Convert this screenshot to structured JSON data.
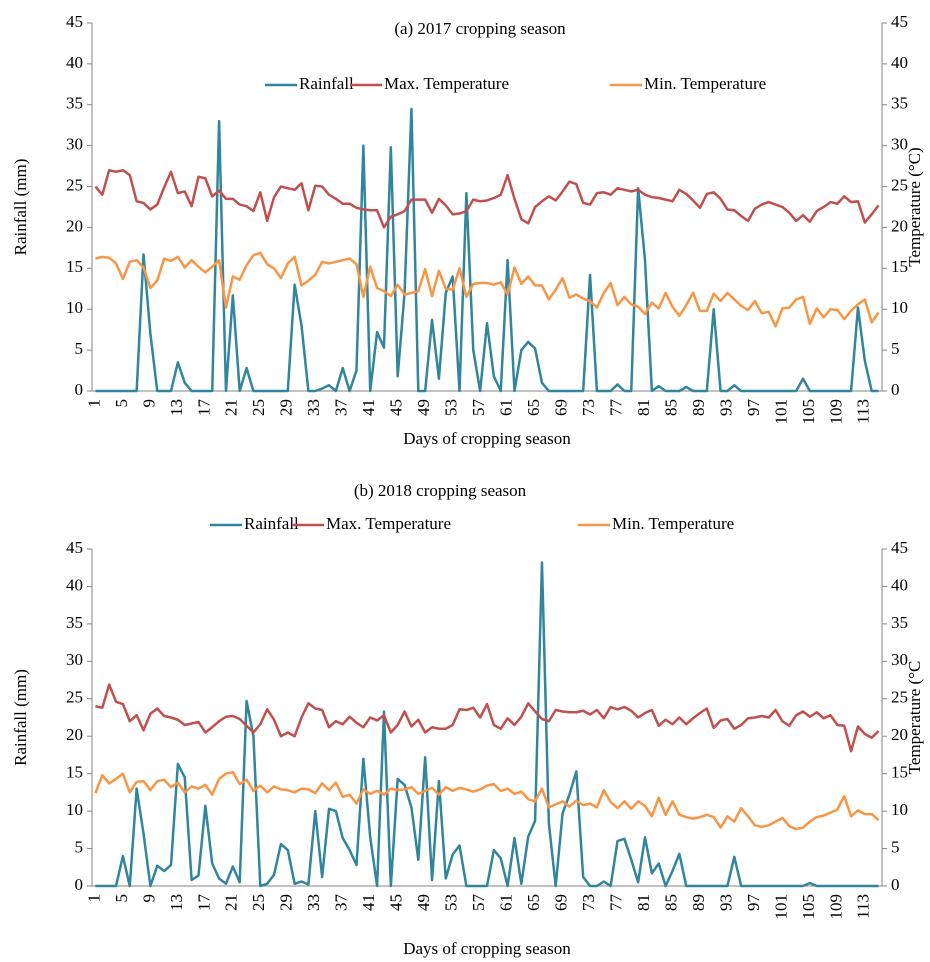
{
  "chart_data": [
    {
      "type": "line",
      "title": "(a) 2017 cropping season",
      "xlabel": "Days of cropping season",
      "ylabel": "Rainfall (mm)",
      "y2label": "Temperature (°C)",
      "legend": "top",
      "categories": [
        1,
        null,
        null,
        null,
        5,
        null,
        null,
        null,
        9,
        null,
        null,
        null,
        13,
        null,
        null,
        null,
        17,
        null,
        null,
        null,
        21,
        null,
        null,
        null,
        25,
        null,
        null,
        null,
        29,
        null,
        null,
        null,
        33,
        null,
        null,
        null,
        37,
        null,
        null,
        null,
        41,
        null,
        null,
        null,
        45,
        null,
        null,
        null,
        49,
        null,
        null,
        null,
        53,
        null,
        null,
        null,
        57,
        null,
        null,
        null,
        61,
        null,
        null,
        null,
        65,
        null,
        null,
        null,
        69,
        null,
        null,
        null,
        73,
        null,
        null,
        null,
        77,
        null,
        null,
        null,
        81,
        null,
        null,
        null,
        85,
        null,
        null,
        null,
        89,
        null,
        null,
        null,
        93,
        null,
        null,
        null,
        97,
        null,
        null,
        null,
        101,
        null,
        null,
        null,
        105,
        null,
        null,
        null,
        109,
        null,
        null,
        null,
        113,
        null,
        null
      ],
      "ylim": [
        0,
        45
      ],
      "yticks": [
        0,
        5,
        10,
        15,
        20,
        25,
        30,
        35,
        40,
        45
      ],
      "y2lim": [
        0,
        45
      ],
      "y2ticks": [
        0,
        5,
        10,
        15,
        20,
        25,
        30,
        35,
        40,
        45
      ],
      "series": [
        {
          "name": "Rainfall",
          "color": "#31859c",
          "values": [
            0,
            0,
            0,
            0,
            0,
            0,
            0,
            16.7,
            7,
            0,
            0,
            0,
            3.5,
            1,
            0,
            0,
            0,
            0,
            33,
            0,
            11.7,
            0,
            2.8,
            0,
            0,
            0,
            0,
            0,
            0,
            13,
            8,
            0,
            0,
            0.3,
            0.7,
            0,
            2.8,
            0,
            2.5,
            30,
            0,
            7.2,
            5.3,
            29.8,
            1.8,
            12,
            34.5,
            0,
            0,
            8.7,
            1.5,
            12,
            14,
            0,
            24.2,
            5,
            0,
            8.3,
            1.8,
            0,
            16,
            0,
            5,
            6,
            5.2,
            1,
            0,
            0,
            0,
            0,
            0,
            0,
            14.2,
            0,
            0,
            0,
            0.8,
            0,
            0,
            24.8,
            16,
            0,
            0.6,
            0,
            0,
            0,
            0.5,
            0,
            0,
            0,
            10,
            0,
            0,
            0.7,
            0,
            0,
            0,
            0,
            0,
            0,
            0,
            0,
            0,
            1.5,
            0,
            0,
            0,
            0,
            0,
            0,
            0,
            10.2,
            3.7,
            0,
            0
          ]
        },
        {
          "name": "Max. Temperature",
          "color": "#c0504d",
          "axis": "y2",
          "values": [
            25,
            24,
            27,
            26.8,
            27,
            26.4,
            23.2,
            23,
            22.2,
            22.8,
            24.9,
            26.8,
            24.2,
            24.4,
            22.6,
            26.2,
            26,
            23.8,
            24.5,
            23.5,
            23.5,
            22.8,
            22.6,
            22,
            24.3,
            20.8,
            23.7,
            25,
            24.8,
            24.6,
            25.4,
            22.1,
            25.1,
            25,
            24,
            23.5,
            22.9,
            22.9,
            22.4,
            22.2,
            22.1,
            22.1,
            20,
            21.3,
            21.6,
            22,
            23.4,
            23.4,
            23.4,
            21.8,
            23.5,
            22.7,
            21.6,
            21.7,
            22,
            23.4,
            23.2,
            23.3,
            23.6,
            24,
            26.4,
            23.5,
            21,
            20.5,
            22.5,
            23.2,
            23.8,
            23.3,
            24.4,
            25.6,
            25.3,
            23,
            22.8,
            24.2,
            24.3,
            24,
            24.8,
            24.6,
            24.4,
            24.6,
            24,
            23.7,
            23.6,
            23.4,
            23.2,
            24.6,
            24.1,
            23.3,
            22.4,
            24.1,
            24.3,
            23.5,
            22.2,
            22.1,
            21.4,
            20.8,
            22.3,
            22.8,
            23.1,
            22.8,
            22.5,
            21.8,
            20.8,
            21.5,
            20.7,
            22,
            22.5,
            23.1,
            22.9,
            23.8,
            23.1,
            23.2,
            20.6,
            21.6,
            22.7
          ]
        },
        {
          "name": "Min. Temperature",
          "color": "#f79646",
          "axis": "y2",
          "values": [
            16.2,
            16.4,
            16.3,
            15.6,
            13.7,
            15.8,
            16,
            15.1,
            12.6,
            13.5,
            16.2,
            15.9,
            16.4,
            15.1,
            16,
            15.2,
            14.5,
            15.2,
            16,
            10.2,
            14,
            13.6,
            15.4,
            16.6,
            16.9,
            15.5,
            15,
            13.8,
            15.6,
            16.4,
            12.9,
            13.5,
            14.2,
            15.8,
            15.6,
            15.8,
            16,
            16.2,
            15.5,
            11.5,
            15.2,
            12.6,
            12.2,
            11.6,
            13,
            11.8,
            12,
            12.2,
            14.9,
            11.6,
            14.7,
            12.5,
            12.4,
            15,
            11.5,
            13.1,
            13.2,
            13.2,
            13,
            13.3,
            11.8,
            15.1,
            13.1,
            14,
            12.9,
            12.9,
            11.2,
            12.4,
            13.8,
            11.4,
            11.8,
            11.3,
            11,
            10.2,
            12,
            13.2,
            10.5,
            11.5,
            10.6,
            10.3,
            9.4,
            10.8,
            10.1,
            12,
            10.3,
            9.2,
            10.5,
            12,
            9.8,
            9.8,
            11.9,
            11,
            12,
            11.2,
            10.4,
            9.9,
            11,
            9.5,
            9.7,
            7.9,
            10.1,
            10.2,
            11.2,
            11.5,
            8.2,
            10.1,
            9,
            10,
            9.9,
            8.8,
            9.8,
            10.6,
            11.2,
            8.4,
            9.6
          ]
        }
      ]
    },
    {
      "type": "line",
      "title": "(b) 2018 cropping season",
      "xlabel": "Days of cropping season",
      "ylabel": "Rainfall (mm)",
      "y2label": "Temperature (°C",
      "legend": "top",
      "categories": [
        1,
        null,
        null,
        null,
        5,
        null,
        null,
        null,
        9,
        null,
        null,
        null,
        13,
        null,
        null,
        null,
        17,
        null,
        null,
        null,
        21,
        null,
        null,
        null,
        25,
        null,
        null,
        null,
        29,
        null,
        null,
        null,
        33,
        null,
        null,
        null,
        37,
        null,
        null,
        null,
        41,
        null,
        null,
        null,
        45,
        null,
        null,
        null,
        49,
        null,
        null,
        null,
        53,
        null,
        null,
        null,
        57,
        null,
        null,
        null,
        61,
        null,
        null,
        null,
        65,
        null,
        null,
        null,
        69,
        null,
        null,
        null,
        73,
        null,
        null,
        null,
        77,
        null,
        null,
        null,
        81,
        null,
        null,
        null,
        85,
        null,
        null,
        null,
        89,
        null,
        null,
        null,
        93,
        null,
        null,
        null,
        97,
        null,
        null,
        null,
        101,
        null,
        null,
        null,
        105,
        null,
        null,
        null,
        109,
        null,
        null,
        null,
        113,
        null,
        null
      ],
      "ylim": [
        0,
        45
      ],
      "yticks": [
        0,
        5,
        10,
        15,
        20,
        25,
        30,
        35,
        40,
        45
      ],
      "y2lim": [
        0,
        45
      ],
      "y2ticks": [
        0,
        5,
        10,
        15,
        20,
        25,
        30,
        35,
        40,
        45
      ],
      "series": [
        {
          "name": "Rainfall",
          "color": "#31859c",
          "values": [
            0,
            0,
            0,
            0,
            4,
            0,
            13,
            7,
            0,
            2.7,
            2,
            2.8,
            16.3,
            14.5,
            0.8,
            1.4,
            10.7,
            3,
            1,
            0.3,
            2.6,
            0.5,
            24.7,
            20,
            0,
            0.3,
            1.5,
            5.6,
            4.8,
            0.3,
            0.6,
            0.2,
            10,
            1.2,
            10.3,
            10,
            6.4,
            4.8,
            2.8,
            17,
            6.5,
            0,
            23.3,
            0,
            14.3,
            13.5,
            10.5,
            3.5,
            17.2,
            0.8,
            14,
            1,
            4.2,
            5.4,
            0,
            0,
            0,
            0,
            4.8,
            3.7,
            0,
            6.4,
            0.3,
            6.6,
            8.7,
            43.2,
            8.4,
            0,
            9.7,
            12.2,
            15.3,
            1.2,
            0,
            0,
            0.6,
            0,
            6,
            6.3,
            3.5,
            0.5,
            6.5,
            1.7,
            3,
            0,
            2,
            4.3,
            0,
            0,
            0,
            0,
            0,
            0,
            0,
            3.9,
            0,
            0,
            0,
            0,
            0,
            0,
            0,
            0,
            0,
            0,
            0.4,
            0,
            0,
            0,
            0,
            0,
            0,
            0,
            0,
            0,
            0
          ]
        },
        {
          "name": "Max. Temperature",
          "color": "#c0504d",
          "axis": "y2",
          "values": [
            24,
            23.8,
            26.9,
            24.6,
            24.3,
            22,
            22.8,
            20.8,
            23,
            23.7,
            22.7,
            22.5,
            22.2,
            21.5,
            21.7,
            21.9,
            20.5,
            21.2,
            22,
            22.6,
            22.7,
            22.3,
            21.4,
            20.5,
            21.6,
            23.6,
            22.2,
            20,
            20.5,
            20,
            22.5,
            24.4,
            23.7,
            23.5,
            21.2,
            22,
            21.6,
            22.6,
            21.8,
            21.2,
            22.5,
            22.1,
            22.8,
            20.5,
            21.5,
            23.3,
            21.3,
            22.2,
            20.5,
            21.2,
            21,
            21,
            21.5,
            23.6,
            23.5,
            23.8,
            22.5,
            24.3,
            21.5,
            21,
            22.4,
            21.5,
            22.6,
            24.4,
            23.3,
            22.3,
            22,
            23.5,
            23.3,
            23.2,
            23.2,
            23.4,
            22.9,
            23.5,
            22.4,
            23.9,
            23.6,
            23.9,
            23.4,
            22.5,
            23.1,
            23.5,
            21.4,
            22.2,
            21.6,
            22.5,
            21.6,
            22.4,
            23.1,
            23.7,
            21.1,
            22.1,
            22.3,
            21,
            21.5,
            22.4,
            22.5,
            22.7,
            22.5,
            23.5,
            22,
            21.4,
            22.8,
            23.3,
            22.6,
            23.2,
            22.4,
            22.8,
            21.5,
            21.4,
            18,
            21.3,
            20.3,
            19.8,
            20.7
          ]
        },
        {
          "name": "Min. Temperature",
          "color": "#f79646",
          "axis": "y2",
          "values": [
            12.4,
            14.8,
            13.7,
            14.3,
            15,
            12.5,
            13.9,
            14,
            12.8,
            14,
            14.2,
            13.2,
            13.8,
            12.5,
            13.3,
            13,
            13.5,
            12.2,
            14.3,
            15,
            15.2,
            13.6,
            14.2,
            12.7,
            13.4,
            12.5,
            13.3,
            12.9,
            12.8,
            12.5,
            13,
            12.9,
            12.4,
            13.7,
            12.8,
            13.8,
            11.9,
            12.2,
            11,
            12.9,
            12.3,
            12.7,
            12.2,
            13,
            12.8,
            12.9,
            13.2,
            12.3,
            12.7,
            13.1,
            12.2,
            13.2,
            12.7,
            13.1,
            12.9,
            12.6,
            12.9,
            13.4,
            13.6,
            12.7,
            13,
            12.3,
            12.6,
            11.6,
            11.3,
            13,
            10.5,
            10.9,
            11.3,
            10.6,
            11.4,
            10.8,
            11,
            10.5,
            12.8,
            11.2,
            10.4,
            11.3,
            10.3,
            11.3,
            10.7,
            9.3,
            11.8,
            9.5,
            11.3,
            9.5,
            9.2,
            9,
            9.2,
            9.5,
            9.2,
            7.8,
            9.3,
            8.6,
            10.4,
            9.3,
            8.1,
            7.9,
            8.1,
            8.6,
            9.1,
            8,
            7.6,
            7.8,
            8.6,
            9.2,
            9.4,
            9.8,
            10.2,
            12,
            9.3,
            10.1,
            9.6,
            9.6,
            8.8
          ]
        }
      ]
    }
  ]
}
